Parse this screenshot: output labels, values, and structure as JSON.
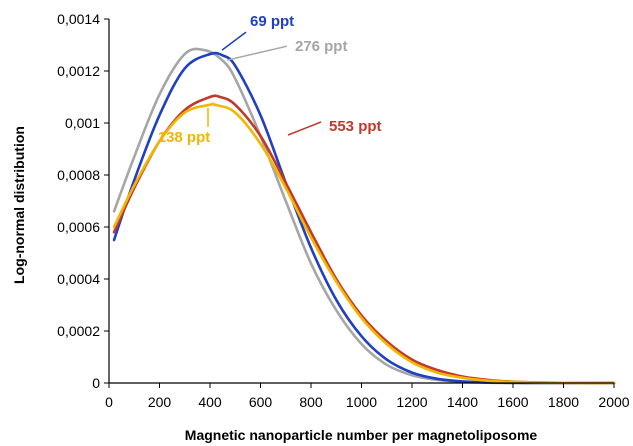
{
  "chart_data": {
    "type": "line",
    "title": "",
    "xlabel": "Magnetic nanoparticle number per magnetoliposome",
    "ylabel": "Log-normal distribution",
    "xlim": [
      0,
      2000
    ],
    "ylim": [
      0,
      0.0014
    ],
    "x_ticks": [
      "0",
      "200",
      "400",
      "600",
      "800",
      "1000",
      "1200",
      "1400",
      "1600",
      "1800",
      "2000"
    ],
    "y_ticks": [
      "0",
      "0,0002",
      "0,0004",
      "0,0006",
      "0,0008",
      "0,001",
      "0,0012",
      "0,0014"
    ],
    "grid": false,
    "legend": "none",
    "series": [
      {
        "name": "276 ppt",
        "color": "#a6a6a6",
        "x": [
          20,
          100,
          200,
          300,
          380,
          450,
          500,
          600,
          700,
          800,
          900,
          1000,
          1100,
          1200,
          1300,
          1400,
          1500,
          1600,
          1700,
          1800,
          1900,
          2000
        ],
        "y": [
          0.00066,
          0.00087,
          0.00111,
          0.001265,
          0.00128,
          0.00124,
          0.00117,
          0.00095,
          0.0007,
          0.00046,
          0.00028,
          0.00015,
          7e-05,
          3e-05,
          1.2e-05,
          4e-06,
          1.2e-06,
          3e-07,
          0.0,
          0.0,
          0.0,
          0.0
        ]
      },
      {
        "name": "69 ppt",
        "color": "#1f3fc4",
        "x": [
          20,
          100,
          200,
          300,
          400,
          450,
          500,
          600,
          700,
          800,
          900,
          1000,
          1100,
          1200,
          1300,
          1400,
          1500,
          1600,
          1700,
          1800,
          1900,
          2000
        ],
        "y": [
          0.00055,
          0.00078,
          0.00103,
          0.00121,
          0.001265,
          0.00126,
          0.00122,
          0.00103,
          0.00077,
          0.00052,
          0.00032,
          0.00018,
          9e-05,
          4e-05,
          1.6e-05,
          6e-06,
          2e-06,
          6e-07,
          0.0,
          0.0,
          0.0,
          0.0
        ]
      },
      {
        "name": "553 ppt",
        "color": "#c0392b",
        "x": [
          20,
          100,
          200,
          300,
          400,
          440,
          500,
          600,
          700,
          800,
          900,
          1000,
          1100,
          1200,
          1300,
          1400,
          1500,
          1600,
          1700,
          1800,
          1900,
          2000
        ],
        "y": [
          0.00058,
          0.00075,
          0.00093,
          0.00105,
          0.0011,
          0.0011,
          0.00107,
          0.00095,
          0.00077,
          0.00058,
          0.0004,
          0.00026,
          0.00016,
          9e-05,
          5e-05,
          2.5e-05,
          1.2e-05,
          5e-06,
          2e-06,
          8e-07,
          3e-07,
          0.0
        ]
      },
      {
        "name": "138 ppt",
        "color": "#f2b600",
        "x": [
          20,
          100,
          200,
          300,
          400,
          420,
          500,
          600,
          700,
          800,
          900,
          1000,
          1100,
          1200,
          1300,
          1400,
          1500,
          1600,
          1700,
          1800,
          1900,
          2000
        ],
        "y": [
          0.0006,
          0.00076,
          0.00093,
          0.00104,
          0.00107,
          0.00107,
          0.00104,
          0.00092,
          0.00075,
          0.00056,
          0.00039,
          0.00025,
          0.00015,
          8e-05,
          4e-05,
          2e-05,
          9e-06,
          4e-06,
          1.5e-06,
          6e-07,
          2e-07,
          0.0
        ]
      }
    ],
    "annotations": [
      {
        "text": "69 ppt",
        "color": "#1f3fc4",
        "series": "69 ppt"
      },
      {
        "text": "276 ppt",
        "color": "#a6a6a6",
        "series": "276 ppt"
      },
      {
        "text": "553 ppt",
        "color": "#c0392b",
        "series": "553 ppt"
      },
      {
        "text": "138 ppt",
        "color": "#f2b600",
        "series": "138 ppt"
      }
    ]
  }
}
